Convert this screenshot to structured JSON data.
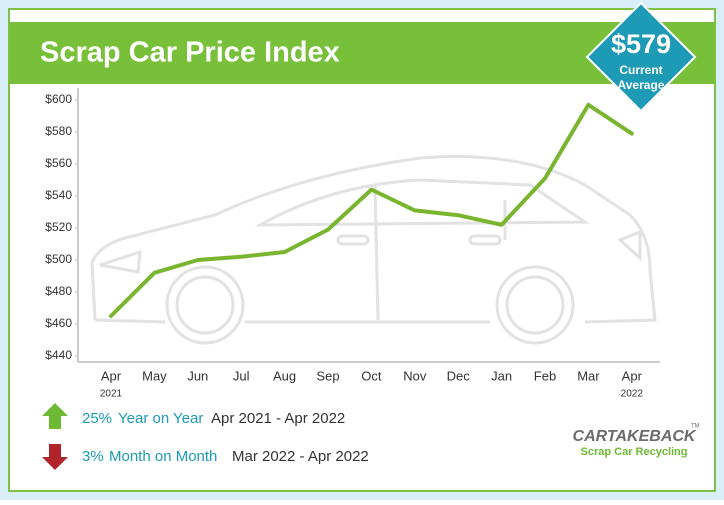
{
  "header": {
    "title": "Scrap Car Price Index",
    "current_average": "$579",
    "current_caption": [
      "Current",
      "Average"
    ]
  },
  "chart_data": {
    "type": "line",
    "categories": [
      "Apr",
      "May",
      "Jun",
      "Jul",
      "Aug",
      "Sep",
      "Oct",
      "Nov",
      "Dec",
      "Jan",
      "Feb",
      "Mar",
      "Apr"
    ],
    "x_sublabels": [
      "2021",
      null,
      null,
      null,
      null,
      null,
      null,
      null,
      null,
      null,
      null,
      null,
      "2022"
    ],
    "series": [
      {
        "name": "Scrap Car Price",
        "color": "#7ab52f",
        "values": [
          465,
          492,
          500,
          502,
          505,
          519,
          544,
          531,
          528,
          522,
          551,
          597,
          579
        ]
      }
    ],
    "ylim": [
      440,
      600
    ],
    "yticks": [
      {
        "value": 440,
        "label": "$440"
      },
      {
        "value": 460,
        "label": "$460"
      },
      {
        "value": 480,
        "label": "$480"
      },
      {
        "value": 500,
        "label": "$500"
      },
      {
        "value": 520,
        "label": "$520"
      },
      {
        "value": 540,
        "label": "$540"
      },
      {
        "value": 560,
        "label": "$560"
      },
      {
        "value": 580,
        "label": "$580"
      },
      {
        "value": 600,
        "label": "$600"
      }
    ],
    "grid": false
  },
  "stats": [
    {
      "change": "25%",
      "period": "Year on Year",
      "range": "Apr 2021 - Apr 2022"
    },
    {
      "change": "3%",
      "period": "Month on Month",
      "range": "Mar 2022 - Apr 2022"
    }
  ],
  "logo": {
    "name": "CARTAKEBACK",
    "tagline": "Scrap Car Recycling",
    "mark": "TM"
  }
}
